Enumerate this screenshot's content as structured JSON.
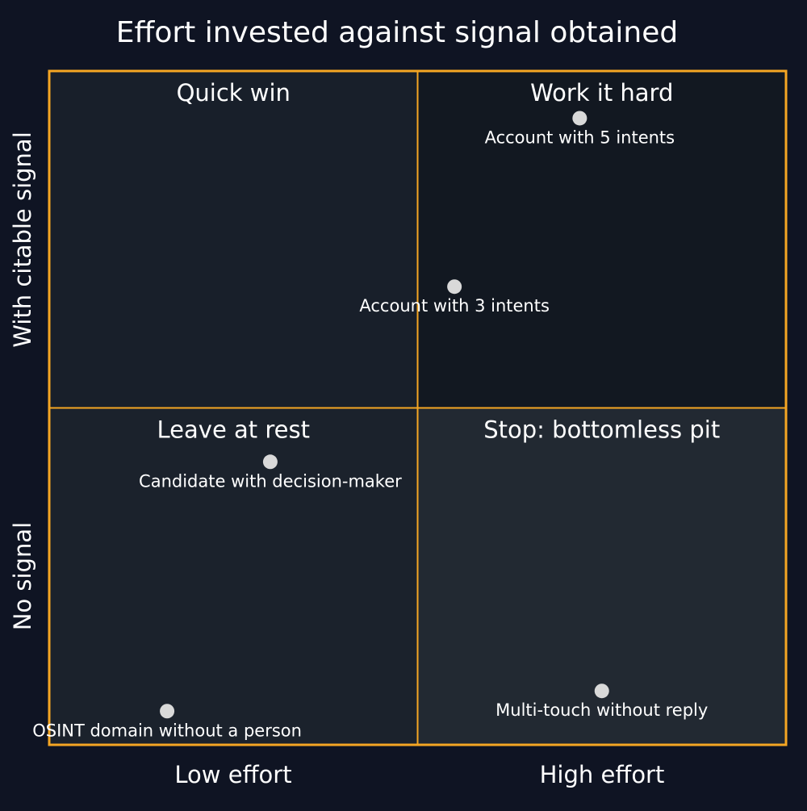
{
  "chart_data": {
    "type": "scatter",
    "title": "Effort invested against signal obtained",
    "x_axis": {
      "labels": [
        "Low effort",
        "High effort"
      ]
    },
    "y_axis": {
      "labels": [
        "No signal",
        "With citable signal"
      ]
    },
    "quadrants": [
      {
        "position": "top-left",
        "label": "Quick win",
        "color": "#181f2a"
      },
      {
        "position": "top-right",
        "label": "Work it hard",
        "color": "#121821"
      },
      {
        "position": "bottom-left",
        "label": "Leave at rest",
        "color": "#1b222c"
      },
      {
        "position": "bottom-right",
        "label": "Stop: bottomless pit",
        "color": "#222932"
      }
    ],
    "points": [
      {
        "label": "Account with 5 intents",
        "x": 0.72,
        "y": 0.93
      },
      {
        "label": "Account with 3 intents",
        "x": 0.55,
        "y": 0.68
      },
      {
        "label": "Candidate with decision-maker",
        "x": 0.3,
        "y": 0.42
      },
      {
        "label": "OSINT domain without a person",
        "x": 0.16,
        "y": 0.05
      },
      {
        "label": "Multi-touch without reply",
        "x": 0.75,
        "y": 0.08
      }
    ],
    "xlim": [
      0,
      1
    ],
    "ylim": [
      0,
      1
    ],
    "colors": {
      "background": "#0f1423",
      "frame": "#f5a623",
      "point": "#d9d9d9",
      "text": "#ffffff"
    }
  }
}
